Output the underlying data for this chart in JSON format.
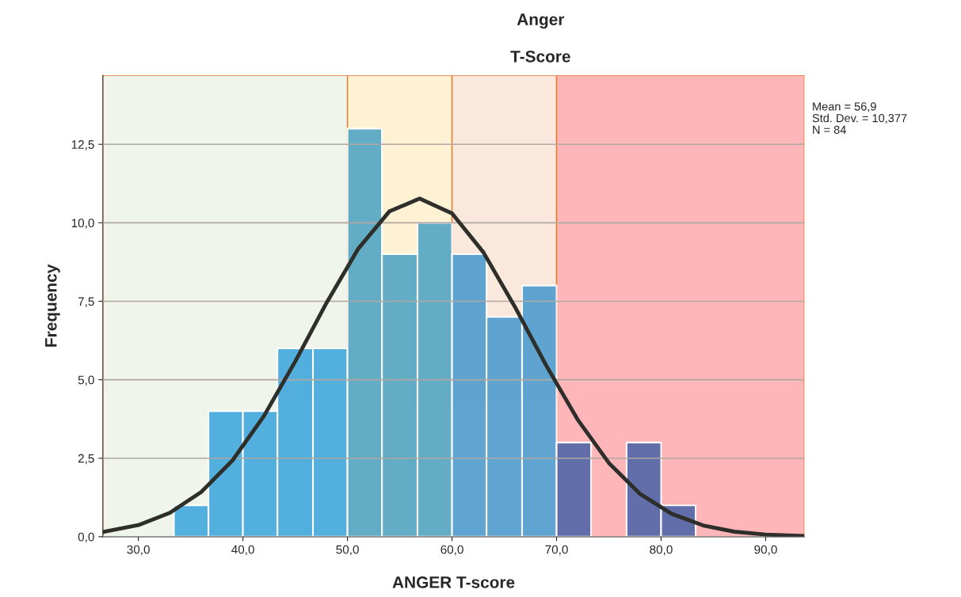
{
  "chart_data": {
    "type": "histogram",
    "title": "Anger",
    "subtitle": "T-Score",
    "xlabel": "ANGER T-score",
    "ylabel": "Frequency",
    "bins": [
      33.4,
      36.7,
      40.0,
      43.3,
      46.7,
      50.0,
      53.3,
      56.7,
      60.0,
      63.3,
      66.7,
      70.0,
      73.3,
      76.7,
      80.0,
      83.3
    ],
    "values": [
      1,
      4,
      4,
      6,
      6,
      13,
      9,
      10,
      9,
      7,
      8,
      3,
      0,
      3,
      1
    ],
    "colors": [
      "#42a8dc",
      "#42a8dc",
      "#42a8dc",
      "#42a8dc",
      "#42a8dc",
      "#52a6c4",
      "#52a6c4",
      "#52a6c4",
      "#4f9dd0",
      "#4f9dd0",
      "#4f9dd0",
      "#5066a8",
      "#5066a8",
      "#5066a8",
      "#5066a8"
    ],
    "series": [
      {
        "type": "line",
        "color": "#2e2e2a",
        "x": [
          26.6,
          30,
          33,
          36,
          39,
          42,
          45,
          48,
          51,
          54,
          56.9,
          60,
          63,
          66,
          69,
          72,
          75,
          78,
          81,
          84,
          87,
          90,
          93.7
        ],
        "values": [
          0.15,
          0.37,
          0.76,
          1.42,
          2.43,
          3.84,
          5.58,
          7.45,
          9.16,
          10.36,
          10.77,
          10.3,
          9.06,
          7.33,
          5.46,
          3.74,
          2.35,
          1.36,
          0.73,
          0.36,
          0.16,
          0.07,
          0.02
        ]
      }
    ],
    "bands": [
      {
        "axis": "x",
        "from": 26.6,
        "to": 50,
        "color": "#eff5ea"
      },
      {
        "axis": "x",
        "from": 50,
        "to": 60,
        "color": "#fff2d4"
      },
      {
        "axis": "x",
        "from": 60,
        "to": 70,
        "color": "#fbe8dc"
      },
      {
        "axis": "x",
        "from": 70,
        "to": 93.7,
        "color": "#ffb6b8"
      }
    ],
    "xlim": [
      26.6,
      93.7
    ],
    "xticks": [
      {
        "value": 30,
        "label": "30,0"
      },
      {
        "value": 40,
        "label": "40,0"
      },
      {
        "value": 50,
        "label": "50,0"
      },
      {
        "value": 60,
        "label": "60,0"
      },
      {
        "value": 70,
        "label": "70,0"
      },
      {
        "value": 80,
        "label": "80,0"
      },
      {
        "value": 90,
        "label": "90,0"
      }
    ],
    "ylim": [
      0,
      14.7
    ],
    "yticks": [
      {
        "value": 0,
        "label": "0,0"
      },
      {
        "value": 2.5,
        "label": "2,5"
      },
      {
        "value": 5,
        "label": "5,0"
      },
      {
        "value": 7.5,
        "label": "7,5"
      },
      {
        "value": 10,
        "label": "10,0"
      },
      {
        "value": 12.5,
        "label": "12,5"
      }
    ],
    "grid": "y",
    "annotations": [
      "Mean = 56,9",
      "Std. Dev. = 10,377",
      "N = 84"
    ]
  }
}
